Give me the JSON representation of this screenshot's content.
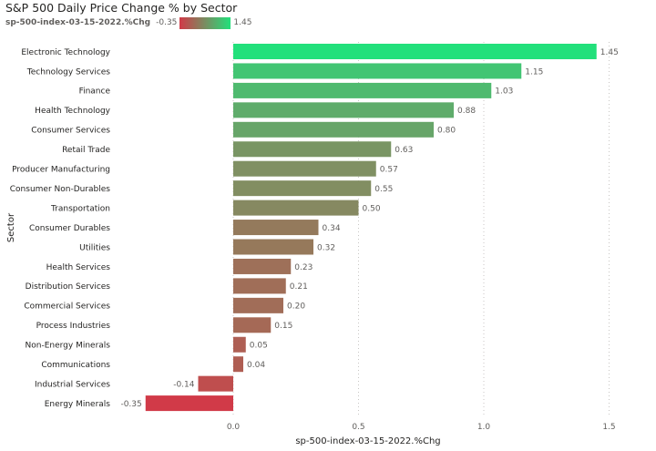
{
  "chart_data": {
    "type": "bar",
    "orientation": "horizontal",
    "title": "S&P 500 Daily Price Change % by Sector",
    "xlabel": "sp-500-index-03-15-2022.%Chg",
    "ylabel": "Sector",
    "xlim": [
      -0.35,
      1.5
    ],
    "xticks": [
      0.0,
      0.5,
      1.0,
      1.5
    ],
    "xtick_labels": [
      "0.0",
      "0.5",
      "1.0",
      "1.5"
    ],
    "grid": true,
    "legend": {
      "name": "sp-500-index-03-15-2022.%Chg",
      "min_label": "-0.35",
      "max_label": "1.45",
      "min_color": "#d13a48",
      "max_color": "#22e07b",
      "placement": "top-left"
    },
    "categories": [
      "Electronic Technology",
      "Technology Services",
      "Finance",
      "Health Technology",
      "Consumer Services",
      "Retail Trade",
      "Producer Manufacturing",
      "Consumer Non-Durables",
      "Transportation",
      "Consumer Durables",
      "Utilities",
      "Health Services",
      "Distribution Services",
      "Commercial Services",
      "Process Industries",
      "Non-Energy Minerals",
      "Communications",
      "Industrial Services",
      "Energy Minerals"
    ],
    "values": [
      1.45,
      1.15,
      1.03,
      0.88,
      0.8,
      0.63,
      0.57,
      0.55,
      0.5,
      0.34,
      0.32,
      0.23,
      0.21,
      0.2,
      0.15,
      0.05,
      0.04,
      -0.14,
      -0.35
    ],
    "value_labels": [
      "1.45",
      "1.15",
      "1.03",
      "0.88",
      "0.80",
      "0.63",
      "0.57",
      "0.55",
      "0.50",
      "0.34",
      "0.32",
      "0.23",
      "0.21",
      "0.20",
      "0.15",
      "0.05",
      "0.04",
      "-0.14",
      "-0.35"
    ]
  }
}
